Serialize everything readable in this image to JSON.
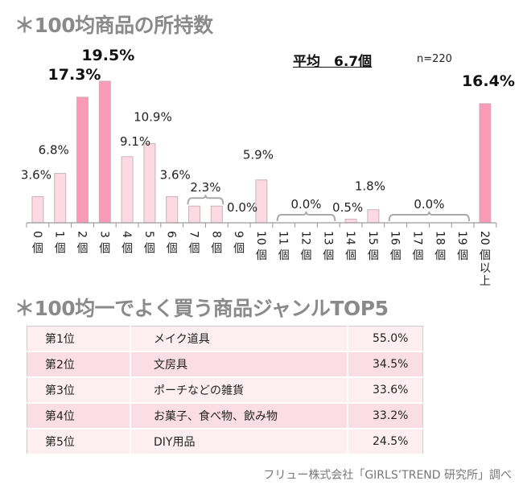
{
  "titles": {
    "ownership": "＊100均商品の所持数",
    "top5": "＊100均一でよく買う商品ジャンルTOP5"
  },
  "average_label": "平均　6.7個",
  "sample_size": "n=220",
  "chart_data": {
    "type": "bar",
    "title": "＊100均商品の所持数",
    "xlabel": "",
    "ylabel": "",
    "ylim": [
      0,
      20
    ],
    "grid": false,
    "categories": [
      "0個",
      "1個",
      "2個",
      "3個",
      "4個",
      "5個",
      "6個",
      "7個",
      "8個",
      "9個",
      "10個",
      "11個",
      "12個",
      "13個",
      "14個",
      "15個",
      "16個",
      "17個",
      "18個",
      "19個",
      "20個以上"
    ],
    "values": [
      3.6,
      6.8,
      17.3,
      19.5,
      9.1,
      10.9,
      3.6,
      2.3,
      2.3,
      0.0,
      5.9,
      0.0,
      0.0,
      0.0,
      0.5,
      1.8,
      0.0,
      0.0,
      0.0,
      0.0,
      16.4
    ],
    "highlighted": [
      2,
      3,
      20
    ],
    "data_labels": [
      {
        "text": "3.6%",
        "for": [
          0
        ]
      },
      {
        "text": "6.8%",
        "for": [
          1
        ]
      },
      {
        "text": "17.3%",
        "for": [
          2
        ],
        "bold": true
      },
      {
        "text": "19.5%",
        "for": [
          3
        ],
        "bold": true
      },
      {
        "text": "9.1%",
        "for": [
          4
        ]
      },
      {
        "text": "10.9%",
        "for": [
          5
        ]
      },
      {
        "text": "3.6%",
        "for": [
          6
        ]
      },
      {
        "text": "2.3%",
        "for": [
          7,
          8
        ],
        "bracket": true
      },
      {
        "text": "0.0%",
        "for": [
          9
        ]
      },
      {
        "text": "5.9%",
        "for": [
          10
        ]
      },
      {
        "text": "0.0%",
        "for": [
          11,
          12,
          13
        ],
        "bracket": true
      },
      {
        "text": "0.5%",
        "for": [
          14
        ]
      },
      {
        "text": "1.8%",
        "for": [
          15
        ]
      },
      {
        "text": "0.0%",
        "for": [
          16,
          17,
          18,
          19
        ],
        "bracket": true
      },
      {
        "text": "16.4%",
        "for": [
          20
        ],
        "bold": true
      }
    ],
    "colors": {
      "normal": "#fdd9e3",
      "highlight": "#f99bb7",
      "edge": "#c8b4ba",
      "axis": "#999999"
    }
  },
  "top5_table": [
    {
      "rank": "第1位",
      "genre": "メイク道具",
      "percent": "55.0%"
    },
    {
      "rank": "第2位",
      "genre": "文房具",
      "percent": "34.5%"
    },
    {
      "rank": "第3位",
      "genre": "ポーチなどの雑貨",
      "percent": "33.6%"
    },
    {
      "rank": "第4位",
      "genre": "お菓子、食べ物、飲み物",
      "percent": "33.2%"
    },
    {
      "rank": "第5位",
      "genre": "DIY用品",
      "percent": "24.5%"
    }
  ],
  "source": "フリュー株式会社「GIRLS’TREND 研究所」調べ"
}
